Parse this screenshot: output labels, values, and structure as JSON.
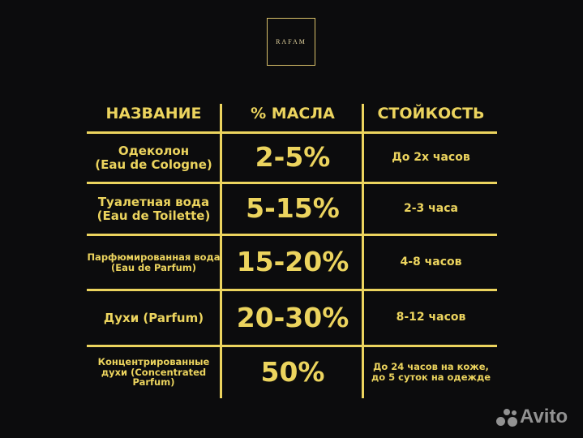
{
  "logo": {
    "text": "RAFAM"
  },
  "table": {
    "headers": [
      "НАЗВАНИЕ",
      "% МАСЛА",
      "СТОЙКОСТЬ"
    ],
    "rows": [
      {
        "name": "Одеколон\n(Eau de Cologne)",
        "oil": "2-5%",
        "duration": "До 2х часов"
      },
      {
        "name": "Туалетная вода\n(Eau de Toilette)",
        "oil": "5-15%",
        "duration": "2-3 часа"
      },
      {
        "name": "Парфюмированная вода\n(Eau de Parfum)",
        "oil": "15-20%",
        "duration": "4-8 часов"
      },
      {
        "name": "Духи (Parfum)",
        "oil": "20-30%",
        "duration": "8-12 часов"
      },
      {
        "name": "Концентрированные\nдухи (Concentrated\nParfum)",
        "oil": "50%",
        "duration": "До 24 часов на коже,\nдо 5 суток на одежде"
      }
    ]
  },
  "watermark": {
    "text": "Avito"
  },
  "colors": {
    "accent": "#ecd45e",
    "background": "#0c0c0d"
  }
}
